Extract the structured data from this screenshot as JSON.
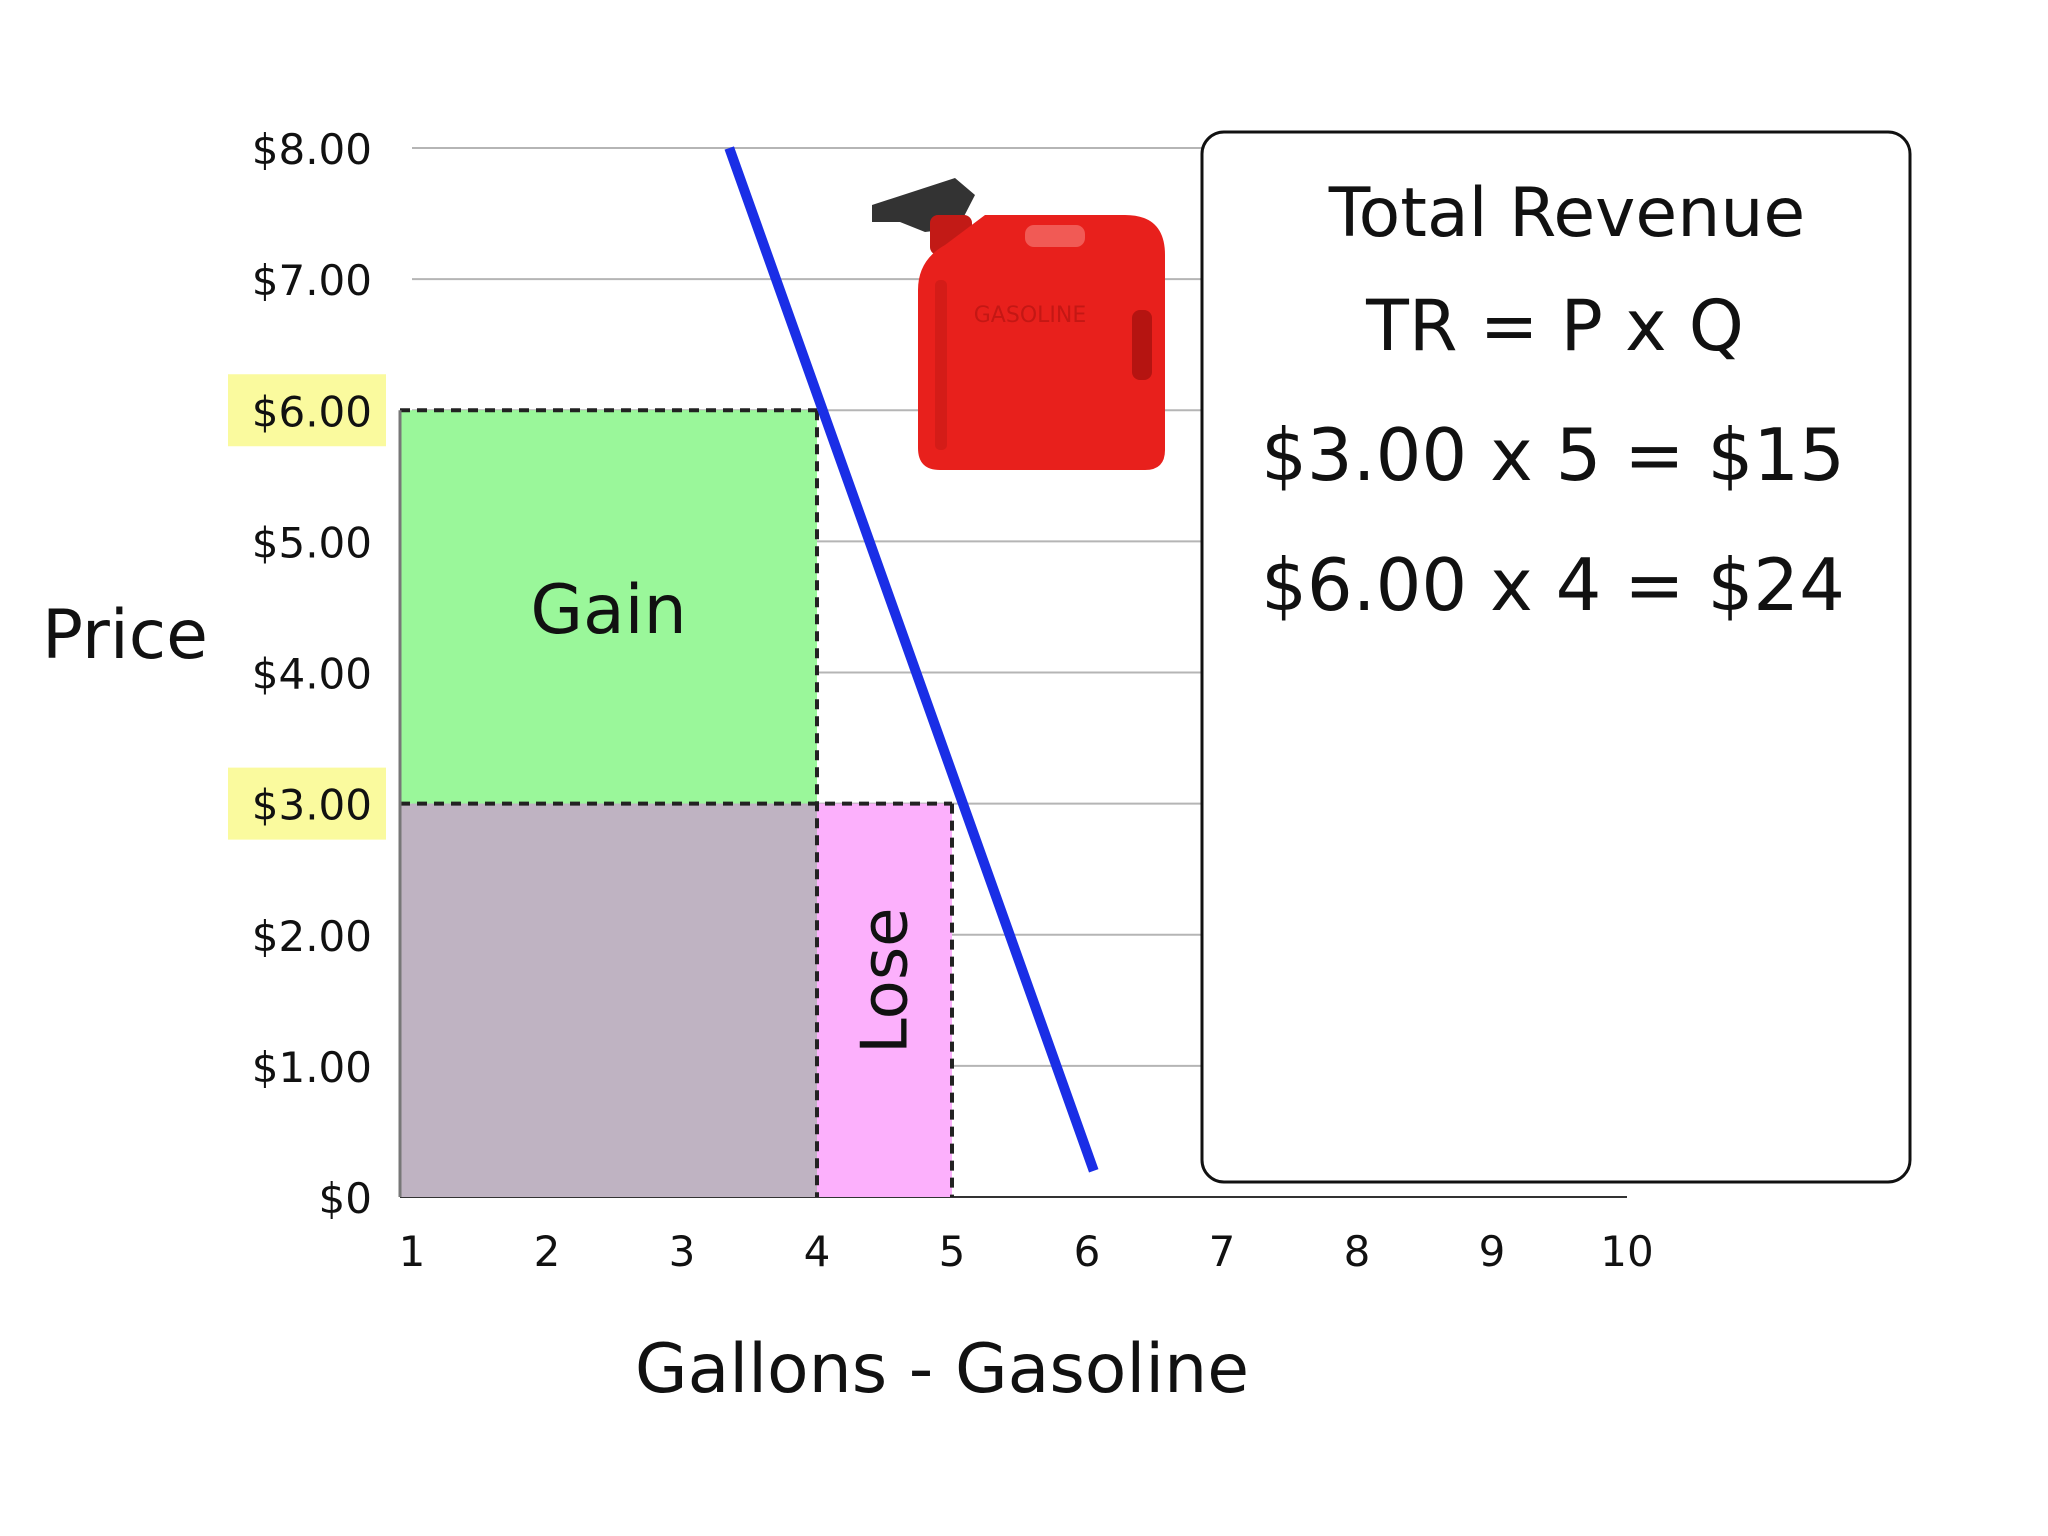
{
  "chart_data": {
    "type": "line",
    "title": "",
    "xlabel": "Gallons - Gasoline",
    "ylabel": "Price",
    "x_ticks": [
      "1",
      "2",
      "3",
      "4",
      "5",
      "6",
      "7",
      "8",
      "9",
      "10"
    ],
    "y_ticks": [
      "$0",
      "$1.00",
      "$2.00",
      "$3.00",
      "$4.00",
      "$5.00",
      "$6.00",
      "$7.00",
      "$8.00"
    ],
    "y_tick_values": [
      0,
      1,
      2,
      3,
      4,
      5,
      6,
      7,
      8
    ],
    "xlim": [
      1,
      10
    ],
    "ylim": [
      0,
      8
    ],
    "grid": true,
    "highlighted_y_ticks": [
      "$3.00",
      "$6.00"
    ],
    "highlight_color": "#fafa9e",
    "series": [
      {
        "color": "#1a2ee6",
        "x": [
          3.35,
          6.05
        ],
        "y": [
          8.0,
          0.2
        ]
      }
    ],
    "regions": [
      {
        "label": "Gain",
        "x": [
          1,
          4
        ],
        "y": [
          3,
          6
        ],
        "color": "#9af79a"
      },
      {
        "label": "",
        "x": [
          1,
          4
        ],
        "y": [
          0,
          3
        ],
        "color": "#bfb3c2"
      },
      {
        "label": "Lose",
        "x": [
          4,
          5
        ],
        "y": [
          0,
          3
        ],
        "color": "#fcb0fc"
      }
    ],
    "points": [
      {
        "x": 4,
        "y": 6
      },
      {
        "x": 5,
        "y": 3
      }
    ]
  },
  "info_box": {
    "title": "Total Revenue",
    "formula": "TR = P x Q",
    "line1": "$3.00 x 5 = $15",
    "line2": "$6.00 x 4 = $24"
  },
  "image": {
    "icon": "gas-can-icon",
    "label": "GASOLINE",
    "color": "#e8201c"
  }
}
